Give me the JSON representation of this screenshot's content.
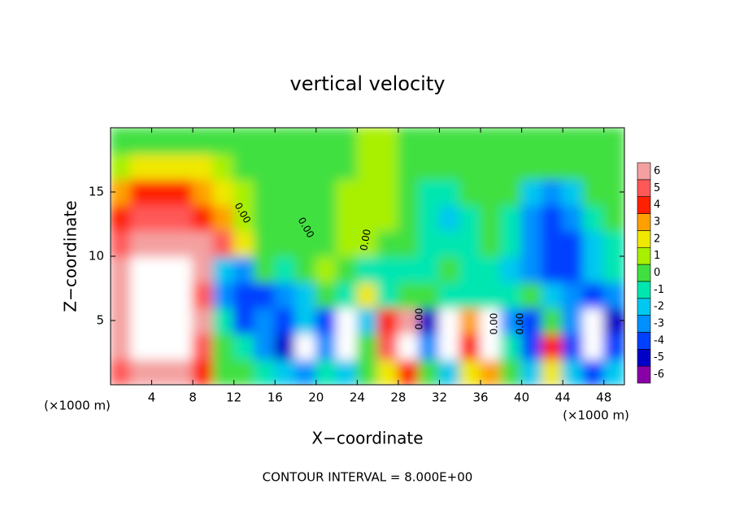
{
  "chart_data": {
    "type": "heatmap",
    "title": "vertical velocity",
    "x_label": "X−coordinate",
    "y_label": "Z−coordinate",
    "x_unit_left": "(×1000 m)",
    "x_unit_right": "(×1000 m)",
    "footer": "CONTOUR INTERVAL = 8.000E+00",
    "contour_labels": [
      "0.00",
      "0.00",
      "0.00",
      "0.00",
      "0.00",
      "0.00"
    ],
    "xlim": [
      0,
      50
    ],
    "ylim": [
      0,
      20
    ],
    "xticks": [
      4,
      8,
      12,
      16,
      20,
      24,
      28,
      32,
      36,
      40,
      44,
      48
    ],
    "yticks": [
      5,
      10,
      15
    ],
    "x": [
      1,
      3,
      5,
      7,
      9,
      11,
      13,
      15,
      17,
      19,
      21,
      23,
      25,
      27,
      29,
      31,
      33,
      35,
      37,
      39,
      41,
      43,
      45,
      47,
      49
    ],
    "y": [
      1,
      3,
      5,
      7,
      9,
      11,
      13,
      15,
      17,
      19
    ],
    "z": [
      [
        5,
        6,
        6,
        6,
        4,
        0,
        0,
        -1,
        -2,
        -3,
        -1,
        -2,
        0,
        2,
        4,
        0,
        -2,
        2,
        3,
        0,
        -2,
        2,
        -2,
        -4,
        -2
      ],
      [
        6,
        10,
        10,
        10,
        5,
        0,
        -1,
        -3,
        -5,
        -10,
        -3,
        -10,
        0,
        5,
        10,
        -3,
        -10,
        4,
        10,
        -1,
        -4,
        4,
        -4,
        -10,
        -4
      ],
      [
        6,
        10,
        10,
        10,
        6,
        -1,
        -4,
        -3,
        -4,
        -2,
        -4,
        -10,
        -2,
        4,
        6,
        -5,
        -10,
        3,
        10,
        -3,
        -4,
        0,
        -3,
        10,
        -5
      ],
      [
        6,
        10,
        10,
        10,
        5,
        -3,
        -4,
        -4,
        -3,
        -2,
        0,
        -1,
        2,
        -1,
        0,
        0,
        -1,
        -1,
        -1,
        -1,
        0,
        -2,
        -3,
        -4,
        -3
      ],
      [
        6,
        10,
        10,
        10,
        6,
        -2,
        -3,
        0,
        -1,
        0,
        1,
        0,
        -1,
        -1,
        -1,
        -1,
        0,
        -1,
        -1,
        -2,
        -3,
        -4,
        -4,
        -2,
        -1
      ],
      [
        5,
        6,
        6,
        6,
        6,
        5,
        2,
        0,
        0,
        0,
        0,
        1,
        1,
        0,
        0,
        -1,
        -1,
        -1,
        0,
        -1,
        -3,
        -4,
        -4,
        -2,
        -1
      ],
      [
        4,
        5,
        5,
        5,
        4,
        3,
        1,
        0,
        0,
        0,
        0,
        1,
        1,
        1,
        0,
        -1,
        -2,
        -1,
        0,
        -1,
        -3,
        -4,
        -3,
        -1,
        0
      ],
      [
        3,
        4,
        4,
        4,
        3,
        2,
        1,
        0,
        0,
        0,
        0,
        1,
        1,
        1,
        0,
        -1,
        -1,
        0,
        0,
        0,
        -2,
        -3,
        -2,
        0,
        0
      ],
      [
        1,
        2,
        2,
        2,
        2,
        1,
        0,
        0,
        0,
        0,
        0,
        0,
        1,
        1,
        0,
        0,
        0,
        0,
        0,
        0,
        0,
        0,
        0,
        0,
        0
      ],
      [
        0,
        0,
        0,
        0,
        0,
        0,
        0,
        0,
        0,
        0,
        0,
        0,
        1,
        1,
        0,
        0,
        0,
        0,
        0,
        0,
        0,
        0,
        0,
        0,
        0
      ]
    ],
    "levels": [
      -6,
      -5,
      -4,
      -3,
      -2,
      -1,
      0,
      1,
      2,
      3,
      4,
      5,
      6
    ],
    "colors": [
      "#8a00a8",
      "#0000c8",
      "#0040ff",
      "#0090ff",
      "#00c8f0",
      "#00e6b0",
      "#40e040",
      "#a8f000",
      "#f0e800",
      "#ffa000",
      "#ff2000",
      "#ff5858",
      "#f4a0a0"
    ],
    "over_color": "#ffffff",
    "under_color": "#ffffff"
  }
}
